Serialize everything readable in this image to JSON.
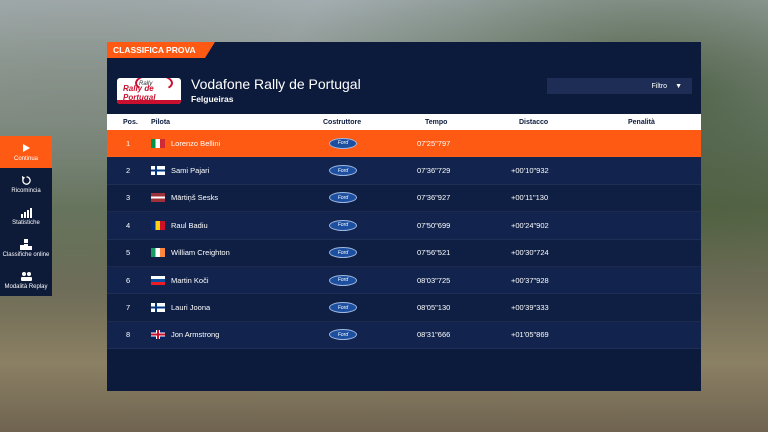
{
  "side_menu": [
    {
      "label": "Continua",
      "icon": "play-icon",
      "active": true
    },
    {
      "label": "Ricomincia",
      "icon": "restart-icon",
      "active": false
    },
    {
      "label": "Statistiche",
      "icon": "stats-icon",
      "active": false
    },
    {
      "label": "Classifiche online",
      "icon": "leaderboard-icon",
      "active": false
    },
    {
      "label": "Modalità Replay",
      "icon": "replay-icon",
      "active": false
    }
  ],
  "panel": {
    "tag": "CLASSIFICA PROVA",
    "logo_text": "Rally de Portugal",
    "logo_small": "Rally",
    "title": "Vodafone Rally de Portugal",
    "subtitle": "Felgueiras",
    "filter_label": "Filtro"
  },
  "columns": {
    "pos": "Pos.",
    "driver": "Pilota",
    "maker": "Costruttore",
    "time": "Tempo",
    "gap": "Distacco",
    "penalty": "Penalità"
  },
  "rows": [
    {
      "pos": "1",
      "flag": "italy-flag",
      "driver": "Lorenzo Bellini",
      "maker": "Ford",
      "time": "07'25\"797",
      "gap": "",
      "penalty": "",
      "highlight": true
    },
    {
      "pos": "2",
      "flag": "finland-flag",
      "driver": "Sami Pajari",
      "maker": "Ford",
      "time": "07'36\"729",
      "gap": "+00'10\"932",
      "penalty": ""
    },
    {
      "pos": "3",
      "flag": "latvia-flag",
      "driver": "Mārtiņš Sesks",
      "maker": "Ford",
      "time": "07'36\"927",
      "gap": "+00'11\"130",
      "penalty": ""
    },
    {
      "pos": "4",
      "flag": "romania-flag",
      "driver": "Raul Badiu",
      "maker": "Ford",
      "time": "07'50\"699",
      "gap": "+00'24\"902",
      "penalty": ""
    },
    {
      "pos": "5",
      "flag": "ireland-flag",
      "driver": "William Creighton",
      "maker": "Ford",
      "time": "07'56\"521",
      "gap": "+00'30\"724",
      "penalty": ""
    },
    {
      "pos": "6",
      "flag": "slovakia-flag",
      "driver": "Martin Koči",
      "maker": "Ford",
      "time": "08'03\"725",
      "gap": "+00'37\"928",
      "penalty": ""
    },
    {
      "pos": "7",
      "flag": "finland-flag",
      "driver": "Lauri Joona",
      "maker": "Ford",
      "time": "08'05\"130",
      "gap": "+00'39\"333",
      "penalty": ""
    },
    {
      "pos": "8",
      "flag": "uk-flag",
      "driver": "Jon Armstrong",
      "maker": "Ford",
      "time": "08'31\"666",
      "gap": "+01'05\"869",
      "penalty": ""
    }
  ],
  "colors": {
    "accent": "#ff5a14",
    "panel": "#0c1a3c"
  }
}
